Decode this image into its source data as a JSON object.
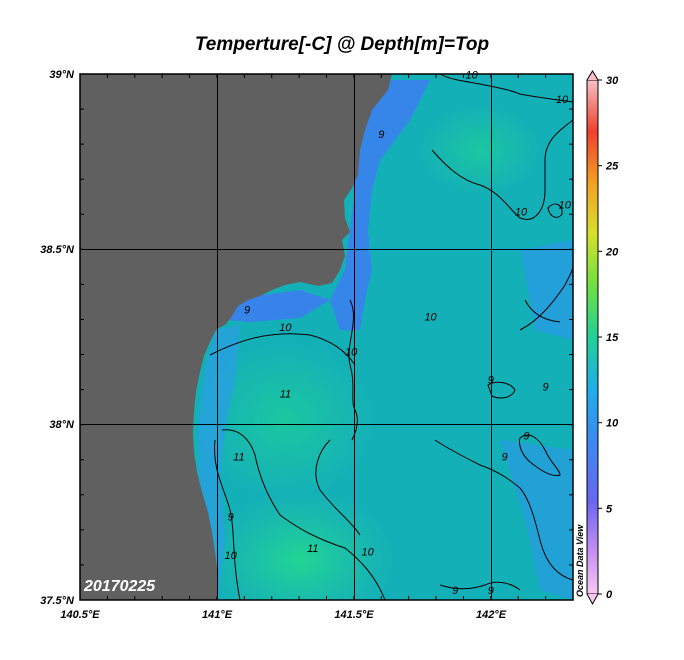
{
  "title": "Temperture[-C] @ Depth[m]=Top",
  "date_stamp": "20170225",
  "watermark": "Ocean Data View",
  "lat_labels": [
    "39°N",
    "38.5°N",
    "38°N",
    "37.5°N"
  ],
  "lon_labels": [
    "140.5°E",
    "141°E",
    "141.5°E",
    "142°E"
  ],
  "colorbar": {
    "ticks": [
      "30",
      "25",
      "20",
      "15",
      "10",
      "5",
      "0"
    ],
    "min": 0,
    "max": 30
  },
  "contour_labels": [
    {
      "text": "10",
      "lon": 141.93,
      "lat": 38.99
    },
    {
      "text": "10",
      "lon": 142.26,
      "lat": 38.92
    },
    {
      "text": "9",
      "lon": 141.6,
      "lat": 38.82
    },
    {
      "text": "10",
      "lon": 142.11,
      "lat": 38.6
    },
    {
      "text": "10",
      "lon": 142.27,
      "lat": 38.62
    },
    {
      "text": "9",
      "lon": 141.11,
      "lat": 38.32
    },
    {
      "text": "10",
      "lon": 141.25,
      "lat": 38.27
    },
    {
      "text": "10",
      "lon": 141.78,
      "lat": 38.3
    },
    {
      "text": "10",
      "lon": 141.49,
      "lat": 38.2
    },
    {
      "text": "11",
      "lon": 141.25,
      "lat": 38.08
    },
    {
      "text": "9",
      "lon": 142.0,
      "lat": 38.12
    },
    {
      "text": "9",
      "lon": 142.2,
      "lat": 38.1
    },
    {
      "text": "9",
      "lon": 142.13,
      "lat": 37.96
    },
    {
      "text": "9",
      "lon": 142.05,
      "lat": 37.9
    },
    {
      "text": "11",
      "lon": 141.08,
      "lat": 37.9
    },
    {
      "text": "9",
      "lon": 141.05,
      "lat": 37.73
    },
    {
      "text": "10",
      "lon": 141.05,
      "lat": 37.62
    },
    {
      "text": "11",
      "lon": 141.35,
      "lat": 37.64
    },
    {
      "text": "10",
      "lon": 141.55,
      "lat": 37.63
    },
    {
      "text": "9",
      "lon": 141.87,
      "lat": 37.52
    },
    {
      "text": "9",
      "lon": 142.0,
      "lat": 37.52
    }
  ]
}
